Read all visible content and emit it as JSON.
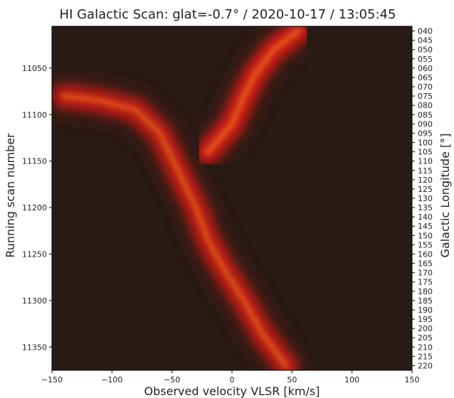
{
  "chart_data": {
    "type": "heatmap",
    "title": "HI Galactic Scan: glat=-0.7° / 2020-10-17 / 13:05:45",
    "xlabel": "Observed velocity VLSR [km/s]",
    "ylabel": "Running scan number",
    "y2label": "Galactic Longitude [°]",
    "xlim": [
      -150,
      150
    ],
    "ylim": [
      11005,
      11375
    ],
    "x_ticks": [
      -150,
      -100,
      -50,
      0,
      50,
      100,
      150
    ],
    "x_tick_labels": [
      "−150",
      "−100",
      "−50",
      "0",
      "50",
      "100",
      "150"
    ],
    "y_ticks": [
      11050,
      11100,
      11150,
      11200,
      11250,
      11300,
      11350
    ],
    "y_tick_labels": [
      "11050",
      "11100",
      "11150",
      "11200",
      "11250",
      "11300",
      "11350"
    ],
    "y2_tick_labels": [
      "040",
      "045",
      "050",
      "055",
      "060",
      "065",
      "070",
      "075",
      "080",
      "085",
      "090",
      "095",
      "100",
      "105",
      "110",
      "115",
      "120",
      "125",
      "130",
      "135",
      "140",
      "145",
      "150",
      "155",
      "160",
      "165",
      "170",
      "175",
      "180",
      "185",
      "190",
      "195",
      "200",
      "205",
      "210",
      "215",
      "220"
    ],
    "y2_tick_scans": [
      11010,
      11020,
      11030,
      11040,
      11050,
      11060,
      11070,
      11080,
      11090,
      11100,
      11110,
      11120,
      11130,
      11140,
      11150,
      11160,
      11170,
      11180,
      11190,
      11200,
      11210,
      11220,
      11230,
      11240,
      11250,
      11260,
      11270,
      11280,
      11290,
      11300,
      11310,
      11320,
      11330,
      11340,
      11350,
      11360,
      11370
    ],
    "colormap": "black-red-orange",
    "colors": {
      "background": "#2a1a15",
      "low": "#3a1a12",
      "mid": "#d21e12",
      "high": "#ff8a1c"
    },
    "emission_ridges": [
      {
        "points": [
          [
            -140,
            11080
          ],
          [
            -110,
            11085
          ],
          [
            -80,
            11095
          ],
          [
            -60,
            11120
          ],
          [
            -45,
            11160
          ],
          [
            -30,
            11200
          ],
          [
            -20,
            11235
          ],
          [
            -5,
            11270
          ],
          [
            10,
            11300
          ],
          [
            25,
            11335
          ],
          [
            45,
            11370
          ]
        ],
        "peak": 0.85
      },
      {
        "points": [
          [
            -20,
            11140
          ],
          [
            0,
            11110
          ],
          [
            10,
            11080
          ],
          [
            20,
            11055
          ],
          [
            35,
            11030
          ],
          [
            55,
            11010
          ]
        ],
        "peak": 0.95
      }
    ]
  }
}
